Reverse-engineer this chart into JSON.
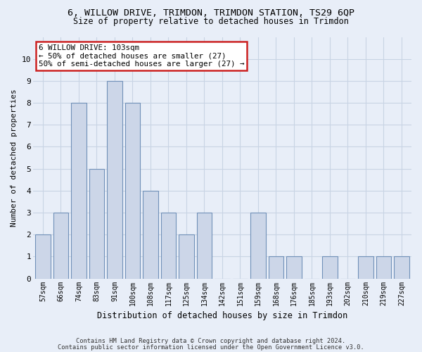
{
  "title1": "6, WILLOW DRIVE, TRIMDON, TRIMDON STATION, TS29 6QP",
  "title2": "Size of property relative to detached houses in Trimdon",
  "xlabel": "Distribution of detached houses by size in Trimdon",
  "ylabel": "Number of detached properties",
  "categories": [
    "57sqm",
    "66sqm",
    "74sqm",
    "83sqm",
    "91sqm",
    "100sqm",
    "108sqm",
    "117sqm",
    "125sqm",
    "134sqm",
    "142sqm",
    "151sqm",
    "159sqm",
    "168sqm",
    "176sqm",
    "185sqm",
    "193sqm",
    "202sqm",
    "210sqm",
    "219sqm",
    "227sqm"
  ],
  "values": [
    2,
    3,
    8,
    5,
    9,
    8,
    4,
    3,
    2,
    3,
    0,
    0,
    3,
    1,
    1,
    0,
    1,
    0,
    1,
    1,
    1
  ],
  "highlight_index": 4,
  "bar_color": "#ccd6e8",
  "bar_edge_color": "#7090b8",
  "annotation_box_bg": "#ffffff",
  "annotation_box_edge": "#cc2222",
  "annotation_line1": "6 WILLOW DRIVE: 103sqm",
  "annotation_line2": "← 50% of detached houses are smaller (27)",
  "annotation_line3": "50% of semi-detached houses are larger (27) →",
  "ylim": [
    0,
    11
  ],
  "yticks": [
    0,
    1,
    2,
    3,
    4,
    5,
    6,
    7,
    8,
    9,
    10,
    11
  ],
  "footer1": "Contains HM Land Registry data © Crown copyright and database right 2024.",
  "footer2": "Contains public sector information licensed under the Open Government Licence v3.0.",
  "bg_color": "#e8eef8",
  "grid_color": "#c8d4e4",
  "title1_fontsize": 9.5,
  "title2_fontsize": 8.5,
  "xlabel_fontsize": 8.5,
  "ylabel_fontsize": 8,
  "tick_fontsize": 7,
  "ann_fontsize": 7.8,
  "footer_fontsize": 6.2
}
